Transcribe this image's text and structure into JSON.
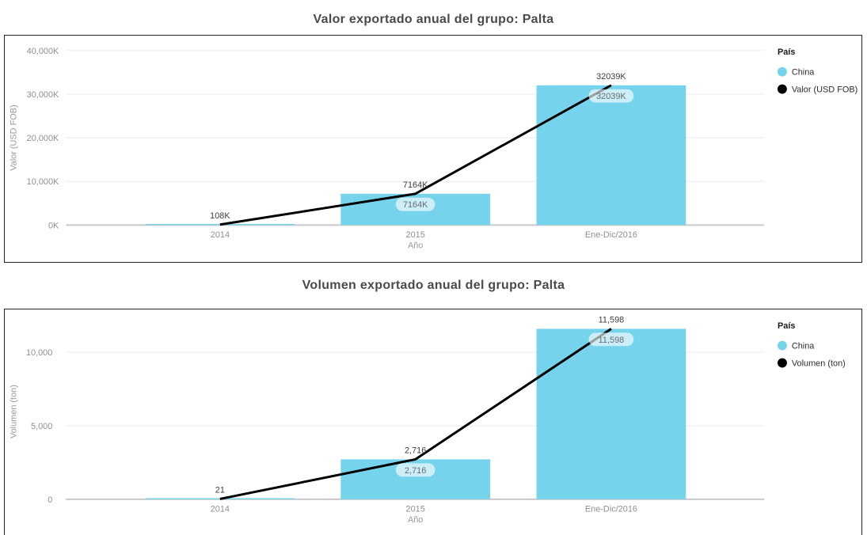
{
  "chart_data": [
    {
      "type": "bar",
      "title": "Valor exportado anual del grupo: Palta",
      "xlabel": "Año",
      "ylabel": "Valor (USD FOB)",
      "categories": [
        "2014",
        "2015",
        "Ene-Dic/2016"
      ],
      "series": [
        {
          "name": "China",
          "kind": "bar",
          "color": "#76D3EC",
          "values": [
            108,
            7164,
            32039
          ],
          "labels": [
            "108K",
            "7164K",
            "32039K"
          ],
          "labels_visible": [
            false,
            true,
            true
          ]
        },
        {
          "name": "Valor (USD FOB)",
          "kind": "line",
          "color": "#000000",
          "values": [
            108,
            7164,
            32039
          ],
          "labels": [
            "108K",
            "7164K",
            "32039K"
          ],
          "labels_visible": [
            true,
            true,
            true
          ]
        }
      ],
      "y_ticks": {
        "values": [
          0,
          10000,
          20000,
          30000,
          40000
        ],
        "labels": [
          "0K",
          "10,000K",
          "20,000K",
          "30,000K",
          "40,000K"
        ]
      },
      "ylim": [
        0,
        40000
      ],
      "grid": true,
      "legend": {
        "title": "País",
        "position": "right",
        "items": [
          {
            "label": "China",
            "color": "#76D3EC"
          },
          {
            "label": "Valor (USD FOB)",
            "color": "#000000"
          }
        ]
      }
    },
    {
      "type": "bar",
      "title": "Volumen exportado anual del grupo: Palta",
      "xlabel": "Año",
      "ylabel": "Volumen (ton)",
      "categories": [
        "2014",
        "2015",
        "Ene-Dic/2016"
      ],
      "series": [
        {
          "name": "China",
          "kind": "bar",
          "color": "#76D3EC",
          "values": [
            21,
            2716,
            11598
          ],
          "labels": [
            "21",
            "2,716",
            "11,598"
          ],
          "labels_visible": [
            false,
            true,
            true
          ]
        },
        {
          "name": "Volumen (ton)",
          "kind": "line",
          "color": "#000000",
          "values": [
            21,
            2716,
            11598
          ],
          "labels": [
            "21",
            "2,716",
            "11,598"
          ],
          "labels_visible": [
            true,
            true,
            true
          ]
        }
      ],
      "y_ticks": {
        "values": [
          0,
          5000,
          10000
        ],
        "labels": [
          "0",
          "5,000",
          "10,000"
        ]
      },
      "ylim": [
        0,
        12000
      ],
      "grid": true,
      "legend": {
        "title": "País",
        "position": "right",
        "items": [
          {
            "label": "China",
            "color": "#76D3EC"
          },
          {
            "label": "Volumen (ton)",
            "color": "#000000"
          }
        ]
      }
    }
  ]
}
